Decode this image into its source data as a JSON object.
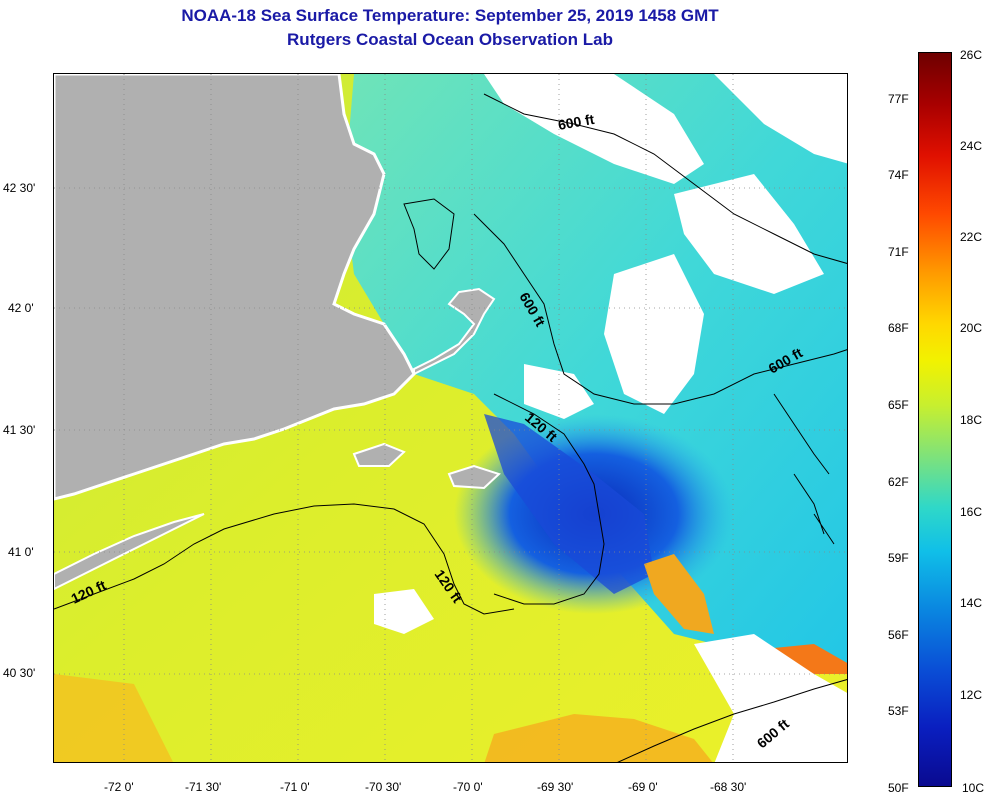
{
  "title": {
    "line1": "NOAA-18 Sea Surface Temperature:  September 25, 2019 1458 GMT",
    "line2": "Rutgers Coastal Ocean Observation Lab"
  },
  "axes": {
    "x_ticks": [
      {
        "label": "-72 0'"
      },
      {
        "label": "-71 30'"
      },
      {
        "label": "-71 0'"
      },
      {
        "label": "-70 30'"
      },
      {
        "label": "-70 0'"
      },
      {
        "label": "-69 30'"
      },
      {
        "label": "-69 0'"
      },
      {
        "label": "-68 30'"
      }
    ],
    "y_ticks": [
      {
        "label": "42 30'"
      },
      {
        "label": "42 0'"
      },
      {
        "label": "41 30'"
      },
      {
        "label": "41 0'"
      },
      {
        "label": "40 30'"
      }
    ]
  },
  "contour_labels": [
    {
      "text": "600 ft"
    },
    {
      "text": "600 ft"
    },
    {
      "text": "600 ft"
    },
    {
      "text": "120 ft"
    },
    {
      "text": "120 ft"
    },
    {
      "text": "120 ft"
    },
    {
      "text": "600 ft"
    }
  ],
  "colorbar": {
    "celsius": [
      "26C",
      "24C",
      "22C",
      "20C",
      "18C",
      "16C",
      "14C",
      "12C",
      "10C"
    ],
    "fahrenheit": [
      "77F",
      "74F",
      "71F",
      "68F",
      "65F",
      "62F",
      "59F",
      "56F",
      "53F",
      "50F"
    ]
  },
  "colors": {
    "title": "#1a1aa6",
    "land": "#b0b0b0",
    "cloud": "#ffffff",
    "warm_shelf": "#e6ee28",
    "cool_gulf": "#50e0d2",
    "cold_shoal": "#1438d0"
  }
}
